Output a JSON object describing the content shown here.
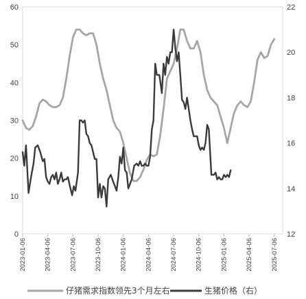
{
  "chart_data": {
    "type": "line",
    "title": "",
    "x_axis": {
      "start_date": "2023-01-06",
      "tick_labels": [
        "2023-01-06",
        "2023-04-06",
        "2023-07-06",
        "2023-10-06",
        "2024-01-06",
        "2024-04-06",
        "2024-07-06",
        "2024-10-06",
        "2025-01-06",
        "2025-04-06",
        "2025-07-06"
      ],
      "range_months": [
        0,
        31
      ]
    },
    "y_left": {
      "ticks": [
        "0",
        "10",
        "20",
        "30",
        "40",
        "50",
        "60"
      ],
      "range": [
        0,
        60
      ]
    },
    "y_right": {
      "ticks": [
        "12",
        "14",
        "16",
        "18",
        "20",
        "22"
      ],
      "range": [
        12,
        22
      ]
    },
    "grid": false,
    "legend_position": "bottom",
    "series": [
      {
        "name": "仔猪需求指数领先3个月左右",
        "axis": "left",
        "color": "#a6a6a6",
        "points": [
          [
            0.0,
            30
          ],
          [
            0.4,
            28
          ],
          [
            0.8,
            27.5
          ],
          [
            1.2,
            28.5
          ],
          [
            1.6,
            31
          ],
          [
            2.0,
            34.5
          ],
          [
            2.4,
            35.5
          ],
          [
            2.8,
            35
          ],
          [
            3.2,
            34
          ],
          [
            3.6,
            33.5
          ],
          [
            4.0,
            33.5
          ],
          [
            4.4,
            34
          ],
          [
            4.8,
            36
          ],
          [
            5.2,
            41
          ],
          [
            5.6,
            47
          ],
          [
            6.0,
            52
          ],
          [
            6.4,
            54
          ],
          [
            6.8,
            54
          ],
          [
            7.2,
            53
          ],
          [
            7.6,
            52.5
          ],
          [
            8.0,
            53
          ],
          [
            8.4,
            53
          ],
          [
            8.8,
            50
          ],
          [
            9.2,
            45
          ],
          [
            9.6,
            41
          ],
          [
            10.0,
            38
          ],
          [
            10.4,
            34
          ],
          [
            10.8,
            30
          ],
          [
            11.2,
            28
          ],
          [
            11.6,
            27
          ],
          [
            12.0,
            24
          ],
          [
            12.4,
            20
          ],
          [
            12.8,
            16
          ],
          [
            13.2,
            14
          ],
          [
            13.6,
            14
          ],
          [
            14.0,
            15
          ],
          [
            14.4,
            17
          ],
          [
            14.8,
            19.5
          ],
          [
            15.2,
            21
          ],
          [
            15.6,
            20.5
          ],
          [
            16.0,
            21
          ],
          [
            16.4,
            26
          ],
          [
            16.8,
            33
          ],
          [
            17.2,
            41
          ],
          [
            17.6,
            43
          ],
          [
            18.0,
            45
          ],
          [
            18.4,
            49
          ],
          [
            18.8,
            54
          ],
          [
            19.2,
            54
          ],
          [
            19.6,
            51
          ],
          [
            20.0,
            49
          ],
          [
            20.4,
            49
          ],
          [
            20.8,
            51
          ],
          [
            21.2,
            48
          ],
          [
            21.6,
            42
          ],
          [
            22.0,
            38
          ],
          [
            22.4,
            36
          ],
          [
            22.8,
            35
          ],
          [
            23.2,
            34
          ],
          [
            23.6,
            31
          ],
          [
            24.0,
            28
          ],
          [
            24.4,
            24
          ],
          [
            24.8,
            28
          ],
          [
            25.2,
            32
          ],
          [
            25.6,
            34
          ],
          [
            26.0,
            35
          ],
          [
            26.4,
            34
          ],
          [
            26.8,
            33.5
          ],
          [
            27.2,
            35
          ],
          [
            27.6,
            40
          ],
          [
            28.0,
            46
          ],
          [
            28.4,
            48
          ],
          [
            28.8,
            46.5
          ],
          [
            29.2,
            47
          ],
          [
            29.6,
            50
          ],
          [
            30.0,
            51.5
          ]
        ]
      },
      {
        "name": "生猪价格（右）",
        "axis": "right",
        "color": "#3a3a3a",
        "points": [
          [
            0.0,
            15.6
          ],
          [
            0.2,
            15.0
          ],
          [
            0.4,
            15.9
          ],
          [
            0.7,
            13.8
          ],
          [
            1.0,
            14.5
          ],
          [
            1.3,
            15.1
          ],
          [
            1.5,
            15.8
          ],
          [
            1.8,
            15.9
          ],
          [
            2.1,
            15.6
          ],
          [
            2.4,
            15.2
          ],
          [
            2.6,
            15.3
          ],
          [
            2.8,
            14.5
          ],
          [
            3.0,
            14.3
          ],
          [
            3.2,
            14.2
          ],
          [
            3.4,
            14.5
          ],
          [
            3.6,
            14.6
          ],
          [
            3.8,
            14.4
          ],
          [
            4.0,
            14.7
          ],
          [
            4.2,
            14.2
          ],
          [
            4.4,
            14.4
          ],
          [
            4.6,
            14.7
          ],
          [
            4.8,
            14.3
          ],
          [
            5.0,
            14.4
          ],
          [
            5.2,
            14.4
          ],
          [
            5.4,
            14.5
          ],
          [
            5.7,
            14.0
          ],
          [
            5.9,
            13.7
          ],
          [
            6.1,
            14.1
          ],
          [
            6.3,
            13.9
          ],
          [
            6.6,
            14.7
          ],
          [
            6.8,
            17.0
          ],
          [
            7.0,
            17.0
          ],
          [
            7.2,
            16.9
          ],
          [
            7.4,
            17.0
          ],
          [
            7.6,
            16.4
          ],
          [
            7.8,
            16.3
          ],
          [
            8.0,
            16.0
          ],
          [
            8.2,
            15.9
          ],
          [
            8.4,
            15.6
          ],
          [
            8.6,
            15.3
          ],
          [
            8.8,
            15.3
          ],
          [
            9.0,
            13.6
          ],
          [
            9.2,
            14.2
          ],
          [
            9.4,
            13.6
          ],
          [
            9.6,
            14.1
          ],
          [
            9.8,
            14.0
          ],
          [
            10.0,
            13.2
          ],
          [
            10.2,
            14.4
          ],
          [
            10.5,
            14.6
          ],
          [
            10.8,
            14.3
          ],
          [
            11.0,
            14.1
          ],
          [
            11.2,
            13.9
          ],
          [
            11.4,
            14.5
          ],
          [
            11.6,
            15.4
          ],
          [
            11.8,
            15.1
          ],
          [
            12.0,
            15.8
          ],
          [
            12.2,
            14.8
          ],
          [
            12.4,
            14.7
          ],
          [
            12.6,
            14.0
          ],
          [
            12.8,
            14.2
          ],
          [
            13.0,
            14.4
          ],
          [
            13.3,
            15.0
          ],
          [
            13.6,
            15.1
          ],
          [
            13.8,
            15.0
          ],
          [
            14.0,
            15.2
          ],
          [
            14.2,
            15.0
          ],
          [
            14.4,
            15.0
          ],
          [
            14.6,
            15.1
          ],
          [
            14.8,
            15.0
          ],
          [
            15.0,
            15.0
          ],
          [
            15.2,
            15.4
          ],
          [
            15.4,
            16.6
          ],
          [
            15.6,
            17.0
          ],
          [
            15.8,
            19.5
          ],
          [
            16.0,
            19.0
          ],
          [
            16.3,
            19.0
          ],
          [
            16.6,
            18.2
          ],
          [
            16.8,
            19.5
          ],
          [
            17.0,
            19.0
          ],
          [
            17.2,
            19.8
          ],
          [
            17.4,
            19.5
          ],
          [
            17.6,
            20.0
          ],
          [
            17.8,
            20.0
          ],
          [
            18.0,
            21.0
          ],
          [
            18.2,
            20.2
          ],
          [
            18.4,
            19.6
          ],
          [
            18.6,
            20.0
          ],
          [
            18.8,
            19.0
          ],
          [
            19.0,
            17.9
          ],
          [
            19.2,
            17.8
          ],
          [
            19.4,
            17.5
          ],
          [
            19.6,
            18.0
          ],
          [
            19.8,
            17.5
          ],
          [
            20.0,
            17.0
          ],
          [
            20.2,
            16.6
          ],
          [
            20.4,
            16.3
          ],
          [
            20.6,
            16.3
          ],
          [
            20.8,
            16.3
          ],
          [
            21.0,
            15.9
          ],
          [
            21.2,
            15.7
          ],
          [
            21.4,
            15.8
          ],
          [
            21.6,
            15.7
          ],
          [
            21.8,
            16.0
          ],
          [
            22.0,
            16.8
          ],
          [
            22.2,
            16.6
          ],
          [
            22.5,
            14.6
          ],
          [
            22.8,
            14.6
          ],
          [
            23.0,
            14.7
          ],
          [
            23.2,
            14.4
          ],
          [
            23.4,
            14.5
          ],
          [
            23.6,
            14.4
          ],
          [
            23.8,
            14.4
          ],
          [
            24.0,
            14.6
          ],
          [
            24.2,
            14.5
          ],
          [
            24.4,
            14.6
          ],
          [
            24.6,
            14.5
          ],
          [
            24.8,
            14.8
          ]
        ]
      }
    ]
  }
}
